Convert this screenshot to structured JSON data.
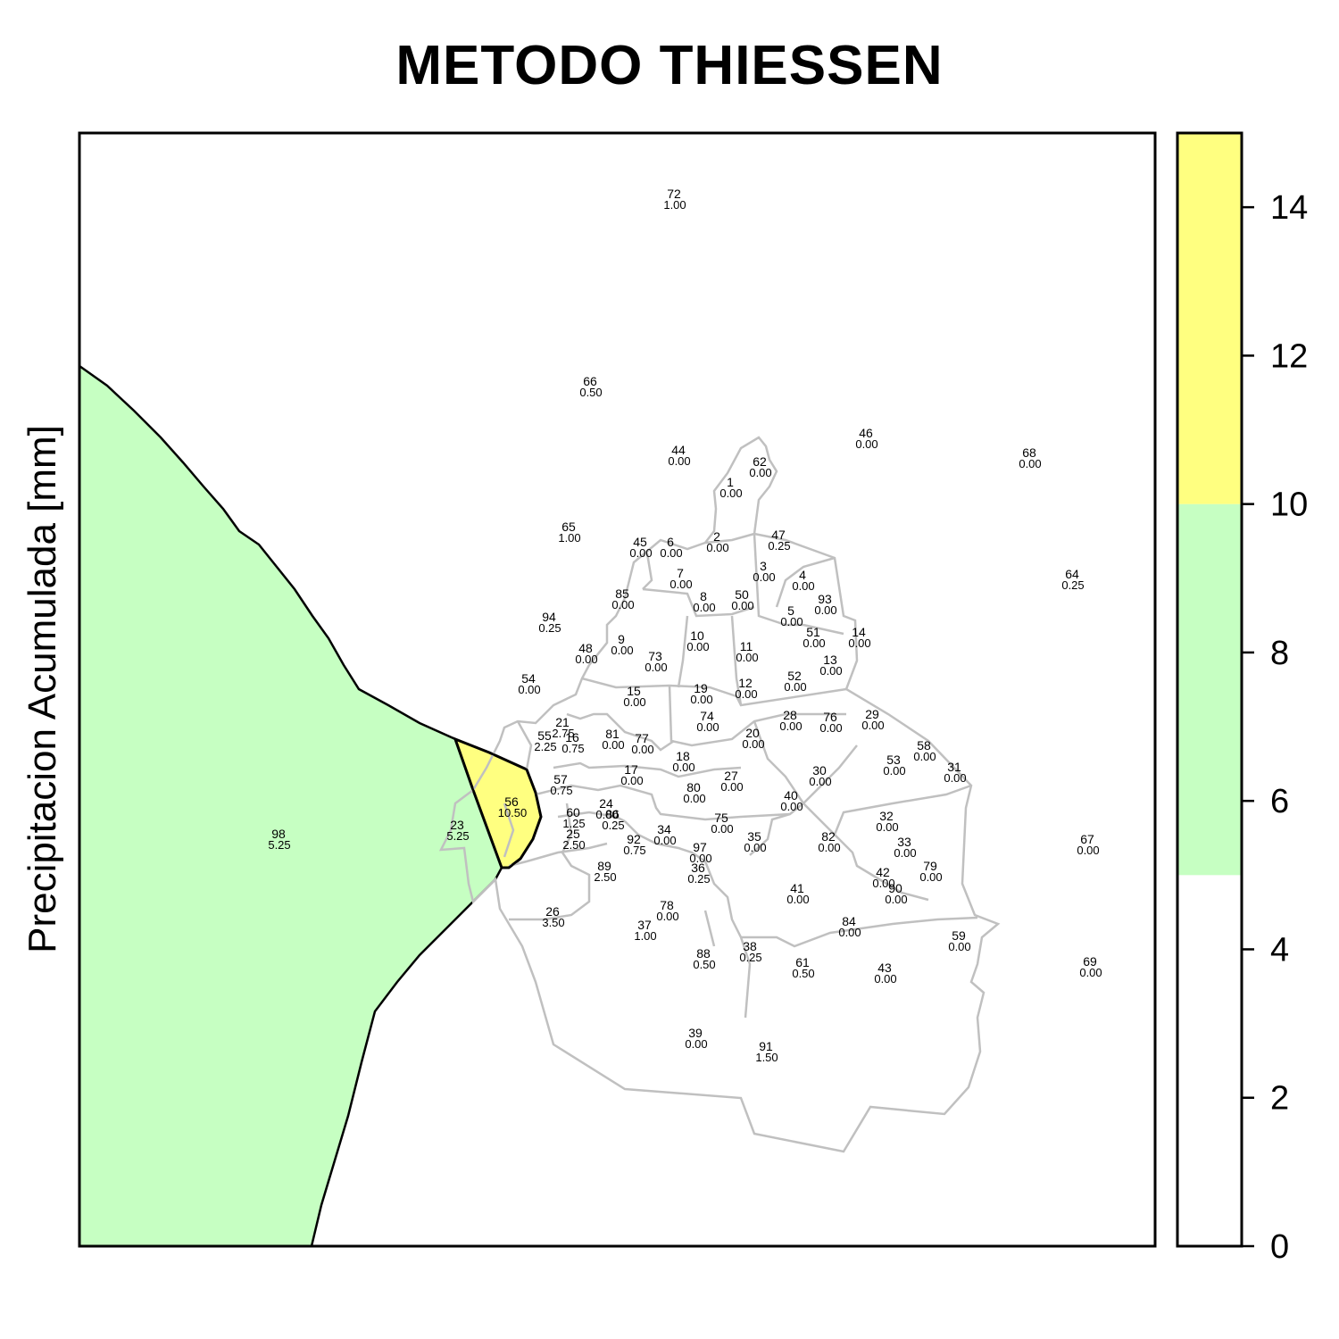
{
  "title": "METODO THIESSEN",
  "ylabel": "Precipitacion Acumulada [mm]",
  "colors": {
    "band_0_5": "#ffffff",
    "band_5_10": "#c6ffc2",
    "band_10_15": "#ffff80",
    "boundary": "#c0c0c0",
    "outline": "#000000"
  },
  "legend": {
    "range": [
      0,
      15
    ],
    "bands": [
      {
        "from": 0,
        "to": 5,
        "color": "#ffffff"
      },
      {
        "from": 5,
        "to": 10,
        "color": "#c6ffc2"
      },
      {
        "from": 10,
        "to": 15,
        "color": "#ffff80"
      }
    ],
    "ticks": [
      "0",
      "2",
      "4",
      "6",
      "8",
      "10",
      "12",
      "14"
    ]
  },
  "stations": [
    {
      "id": "72",
      "value": "1.00"
    },
    {
      "id": "66",
      "value": "0.50"
    },
    {
      "id": "44",
      "value": "0.00"
    },
    {
      "id": "46",
      "value": "0.00"
    },
    {
      "id": "62",
      "value": "0.00"
    },
    {
      "id": "68",
      "value": "0.00"
    },
    {
      "id": "1",
      "value": "0.00"
    },
    {
      "id": "65",
      "value": "1.00"
    },
    {
      "id": "45",
      "value": "0.00"
    },
    {
      "id": "6",
      "value": "0.00"
    },
    {
      "id": "2",
      "value": "0.00"
    },
    {
      "id": "47",
      "value": "0.25"
    },
    {
      "id": "64",
      "value": "0.25"
    },
    {
      "id": "3",
      "value": "0.00"
    },
    {
      "id": "4",
      "value": "0.00"
    },
    {
      "id": "7",
      "value": "0.00"
    },
    {
      "id": "85",
      "value": "0.00"
    },
    {
      "id": "8",
      "value": "0.00"
    },
    {
      "id": "50",
      "value": "0.00"
    },
    {
      "id": "93",
      "value": "0.00"
    },
    {
      "id": "5",
      "value": "0.00"
    },
    {
      "id": "94",
      "value": "0.25"
    },
    {
      "id": "51",
      "value": "0.00"
    },
    {
      "id": "14",
      "value": "0.00"
    },
    {
      "id": "9",
      "value": "0.00"
    },
    {
      "id": "10",
      "value": "0.00"
    },
    {
      "id": "48",
      "value": "0.00"
    },
    {
      "id": "11",
      "value": "0.00"
    },
    {
      "id": "73",
      "value": "0.00"
    },
    {
      "id": "13",
      "value": "0.00"
    },
    {
      "id": "52",
      "value": "0.00"
    },
    {
      "id": "54",
      "value": "0.00"
    },
    {
      "id": "19",
      "value": "0.00"
    },
    {
      "id": "12",
      "value": "0.00"
    },
    {
      "id": "15",
      "value": "0.00"
    },
    {
      "id": "28",
      "value": "0.00"
    },
    {
      "id": "74",
      "value": "0.00"
    },
    {
      "id": "76",
      "value": "0.00"
    },
    {
      "id": "29",
      "value": "0.00"
    },
    {
      "id": "21",
      "value": "2.75"
    },
    {
      "id": "55",
      "value": "2.25"
    },
    {
      "id": "16",
      "value": "0.75"
    },
    {
      "id": "81",
      "value": "0.00"
    },
    {
      "id": "77",
      "value": "0.00"
    },
    {
      "id": "20",
      "value": "0.00"
    },
    {
      "id": "58",
      "value": "0.00"
    },
    {
      "id": "18",
      "value": "0.00"
    },
    {
      "id": "53",
      "value": "0.00"
    },
    {
      "id": "31",
      "value": "0.00"
    },
    {
      "id": "17",
      "value": "0.00"
    },
    {
      "id": "27",
      "value": "0.00"
    },
    {
      "id": "30",
      "value": "0.00"
    },
    {
      "id": "57",
      "value": "0.75"
    },
    {
      "id": "80",
      "value": "0.00"
    },
    {
      "id": "40",
      "value": "0.00"
    },
    {
      "id": "56",
      "value": "10.50"
    },
    {
      "id": "60",
      "value": "1.25"
    },
    {
      "id": "24",
      "value": "0.00"
    },
    {
      "id": "86",
      "value": "0.25"
    },
    {
      "id": "75",
      "value": "0.00"
    },
    {
      "id": "32",
      "value": "0.00"
    },
    {
      "id": "23",
      "value": "5.25"
    },
    {
      "id": "98",
      "value": "5.25"
    },
    {
      "id": "25",
      "value": "2.50"
    },
    {
      "id": "34",
      "value": "0.00"
    },
    {
      "id": "92",
      "value": "0.75"
    },
    {
      "id": "35",
      "value": "0.00"
    },
    {
      "id": "82",
      "value": "0.00"
    },
    {
      "id": "33",
      "value": "0.00"
    },
    {
      "id": "67",
      "value": "0.00"
    },
    {
      "id": "97",
      "value": "0.00"
    },
    {
      "id": "36",
      "value": "0.25"
    },
    {
      "id": "89",
      "value": "2.50"
    },
    {
      "id": "79",
      "value": "0.00"
    },
    {
      "id": "42",
      "value": "0.00"
    },
    {
      "id": "90",
      "value": "0.00"
    },
    {
      "id": "41",
      "value": "0.00"
    },
    {
      "id": "26",
      "value": "3.50"
    },
    {
      "id": "78",
      "value": "0.00"
    },
    {
      "id": "84",
      "value": "0.00"
    },
    {
      "id": "37",
      "value": "1.00"
    },
    {
      "id": "59",
      "value": "0.00"
    },
    {
      "id": "38",
      "value": "0.25"
    },
    {
      "id": "88",
      "value": "0.50"
    },
    {
      "id": "61",
      "value": "0.50"
    },
    {
      "id": "43",
      "value": "0.00"
    },
    {
      "id": "69",
      "value": "0.00"
    },
    {
      "id": "39",
      "value": "0.00"
    },
    {
      "id": "91",
      "value": "1.50"
    }
  ]
}
